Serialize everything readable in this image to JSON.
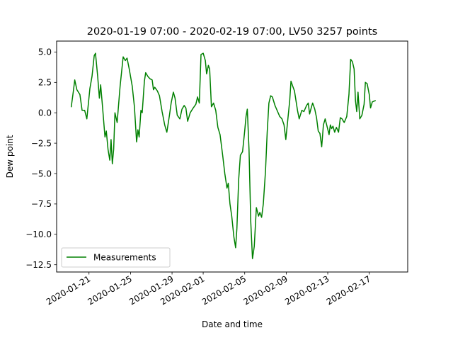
{
  "chart_data": {
    "type": "line",
    "title": "2020-01-19 07:00 - 2020-02-19 07:00, LV50 3257 points",
    "xlabel": "Date and time",
    "ylabel": "Dew point",
    "x_range": [
      "2020-01-19 07:00",
      "2020-02-19 07:00"
    ],
    "ylim": [
      -13.1,
      5.9
    ],
    "grid": false,
    "legend_position": "lower left",
    "x_ticks": [
      "2020-01-21",
      "2020-01-25",
      "2020-01-29",
      "2020-02-01",
      "2020-02-05",
      "2020-02-09",
      "2020-02-13",
      "2020-02-17"
    ],
    "y_ticks": [
      5.0,
      2.5,
      0.0,
      -2.5,
      -5.0,
      -7.5,
      -10.0,
      -12.5
    ],
    "y_tick_labels": [
      "5.0",
      "2.5",
      "0.0",
      "−2.5",
      "−5.0",
      "−7.5",
      "−10.0",
      "−12.5"
    ],
    "series": [
      {
        "name": "Measurements",
        "color": "#008000",
        "points": [
          [
            "2020-01-19 07:00",
            0.5
          ],
          [
            "2020-01-19 12:00",
            1.8
          ],
          [
            "2020-01-19 15:00",
            2.7
          ],
          [
            "2020-01-19 20:00",
            1.9
          ],
          [
            "2020-01-20 03:00",
            1.5
          ],
          [
            "2020-01-20 08:00",
            0.2
          ],
          [
            "2020-01-20 14:00",
            0.2
          ],
          [
            "2020-01-20 19:00",
            -0.5
          ],
          [
            "2020-01-21 02:00",
            2.0
          ],
          [
            "2020-01-21 07:00",
            3.0
          ],
          [
            "2020-01-21 12:00",
            4.7
          ],
          [
            "2020-01-21 15:00",
            4.9
          ],
          [
            "2020-01-21 20:00",
            3.0
          ],
          [
            "2020-01-22 00:00",
            1.2
          ],
          [
            "2020-01-22 03:00",
            2.3
          ],
          [
            "2020-01-22 07:00",
            0.6
          ],
          [
            "2020-01-22 10:00",
            -0.7
          ],
          [
            "2020-01-22 13:00",
            -2.0
          ],
          [
            "2020-01-22 16:00",
            -1.5
          ],
          [
            "2020-01-22 20:00",
            -3.0
          ],
          [
            "2020-01-23 00:00",
            -3.9
          ],
          [
            "2020-01-23 03:00",
            -2.2
          ],
          [
            "2020-01-23 06:00",
            -4.2
          ],
          [
            "2020-01-23 09:00",
            -3.0
          ],
          [
            "2020-01-23 12:00",
            0.0
          ],
          [
            "2020-01-23 17:00",
            -0.8
          ],
          [
            "2020-01-24 00:00",
            2.2
          ],
          [
            "2020-01-24 07:00",
            4.6
          ],
          [
            "2020-01-24 12:00",
            4.3
          ],
          [
            "2020-01-24 16:00",
            4.5
          ],
          [
            "2020-01-24 21:00",
            3.6
          ],
          [
            "2020-01-25 04:00",
            2.2
          ],
          [
            "2020-01-25 09:00",
            0.5
          ],
          [
            "2020-01-25 14:00",
            -2.4
          ],
          [
            "2020-01-25 17:00",
            -1.4
          ],
          [
            "2020-01-25 20:00",
            -2.0
          ],
          [
            "2020-01-26 00:00",
            0.2
          ],
          [
            "2020-01-26 03:00",
            0.0
          ],
          [
            "2020-01-26 08:00",
            2.6
          ],
          [
            "2020-01-26 11:00",
            3.3
          ],
          [
            "2020-01-26 16:00",
            3.0
          ],
          [
            "2020-01-26 21:00",
            2.8
          ],
          [
            "2020-01-27 02:00",
            2.7
          ],
          [
            "2020-01-27 05:00",
            1.9
          ],
          [
            "2020-01-27 08:00",
            2.1
          ],
          [
            "2020-01-27 14:00",
            1.8
          ],
          [
            "2020-01-27 19:00",
            1.4
          ],
          [
            "2020-01-28 01:00",
            0.1
          ],
          [
            "2020-01-28 07:00",
            -1.0
          ],
          [
            "2020-01-28 12:00",
            -1.6
          ],
          [
            "2020-01-28 18:00",
            -0.2
          ],
          [
            "2020-01-28 22:00",
            0.8
          ],
          [
            "2020-01-29 03:00",
            1.7
          ],
          [
            "2020-01-29 07:00",
            1.2
          ],
          [
            "2020-01-29 12:00",
            -0.2
          ],
          [
            "2020-01-29 18:00",
            -0.5
          ],
          [
            "2020-01-29 23:00",
            0.3
          ],
          [
            "2020-01-30 04:00",
            0.6
          ],
          [
            "2020-01-30 08:00",
            0.4
          ],
          [
            "2020-01-30 12:00",
            -0.7
          ],
          [
            "2020-01-30 18:00",
            0.0
          ],
          [
            "2020-01-31 01:00",
            0.4
          ],
          [
            "2020-01-31 07:00",
            0.7
          ],
          [
            "2020-01-31 11:00",
            1.3
          ],
          [
            "2020-01-31 15:00",
            0.8
          ],
          [
            "2020-01-31 19:00",
            4.8
          ],
          [
            "2020-02-01 00:00",
            4.9
          ],
          [
            "2020-02-01 05:00",
            4.3
          ],
          [
            "2020-02-01 08:00",
            3.2
          ],
          [
            "2020-02-01 12:00",
            3.9
          ],
          [
            "2020-02-01 15:00",
            3.6
          ],
          [
            "2020-02-01 19:00",
            0.5
          ],
          [
            "2020-02-02 00:00",
            0.8
          ],
          [
            "2020-02-02 05:00",
            0.2
          ],
          [
            "2020-02-02 10:00",
            -1.2
          ],
          [
            "2020-02-02 15:00",
            -1.8
          ],
          [
            "2020-02-02 21:00",
            -3.5
          ],
          [
            "2020-02-03 02:00",
            -5.0
          ],
          [
            "2020-02-03 07:00",
            -6.2
          ],
          [
            "2020-02-03 10:00",
            -5.8
          ],
          [
            "2020-02-03 14:00",
            -7.5
          ],
          [
            "2020-02-03 18:00",
            -8.5
          ],
          [
            "2020-02-03 23:00",
            -10.2
          ],
          [
            "2020-02-04 03:00",
            -11.1
          ],
          [
            "2020-02-04 06:00",
            -9.5
          ],
          [
            "2020-02-04 10:00",
            -5.5
          ],
          [
            "2020-02-04 14:00",
            -3.5
          ],
          [
            "2020-02-04 19:00",
            -3.2
          ],
          [
            "2020-02-05 00:00",
            -1.5
          ],
          [
            "2020-02-05 03:00",
            -0.3
          ],
          [
            "2020-02-05 06:00",
            0.3
          ],
          [
            "2020-02-05 10:00",
            -3.0
          ],
          [
            "2020-02-05 14:00",
            -9.0
          ],
          [
            "2020-02-05 18:00",
            -12.0
          ],
          [
            "2020-02-05 22:00",
            -11.0
          ],
          [
            "2020-02-06 03:00",
            -7.8
          ],
          [
            "2020-02-06 08:00",
            -8.5
          ],
          [
            "2020-02-06 11:00",
            -8.2
          ],
          [
            "2020-02-06 15:00",
            -8.6
          ],
          [
            "2020-02-06 19:00",
            -7.5
          ],
          [
            "2020-02-07 00:00",
            -4.8
          ],
          [
            "2020-02-07 04:00",
            -1.6
          ],
          [
            "2020-02-07 08:00",
            0.8
          ],
          [
            "2020-02-07 12:00",
            1.4
          ],
          [
            "2020-02-07 16:00",
            1.3
          ],
          [
            "2020-02-07 22:00",
            0.6
          ],
          [
            "2020-02-08 04:00",
            0.1
          ],
          [
            "2020-02-08 09:00",
            -0.3
          ],
          [
            "2020-02-08 14:00",
            -0.5
          ],
          [
            "2020-02-08 19:00",
            -1.0
          ],
          [
            "2020-02-08 23:00",
            -2.2
          ],
          [
            "2020-02-09 03:00",
            -0.8
          ],
          [
            "2020-02-09 08:00",
            1.0
          ],
          [
            "2020-02-09 11:00",
            2.6
          ],
          [
            "2020-02-09 15:00",
            2.2
          ],
          [
            "2020-02-09 19:00",
            1.8
          ],
          [
            "2020-02-10 02:00",
            0.2
          ],
          [
            "2020-02-10 06:00",
            -0.5
          ],
          [
            "2020-02-10 12:00",
            0.2
          ],
          [
            "2020-02-10 17:00",
            0.1
          ],
          [
            "2020-02-10 23:00",
            0.6
          ],
          [
            "2020-02-11 03:00",
            0.8
          ],
          [
            "2020-02-11 06:00",
            -0.1
          ],
          [
            "2020-02-11 09:00",
            0.3
          ],
          [
            "2020-02-11 13:00",
            0.8
          ],
          [
            "2020-02-11 18:00",
            0.3
          ],
          [
            "2020-02-11 22:00",
            -0.4
          ],
          [
            "2020-02-12 02:00",
            -1.5
          ],
          [
            "2020-02-12 06:00",
            -1.7
          ],
          [
            "2020-02-12 10:00",
            -2.8
          ],
          [
            "2020-02-12 14:00",
            -1.0
          ],
          [
            "2020-02-12 18:00",
            -0.5
          ],
          [
            "2020-02-12 23:00",
            -1.2
          ],
          [
            "2020-02-13 03:00",
            -1.8
          ],
          [
            "2020-02-13 06:00",
            -1.0
          ],
          [
            "2020-02-13 09:00",
            -1.3
          ],
          [
            "2020-02-13 12:00",
            -1.1
          ],
          [
            "2020-02-13 16:00",
            -1.6
          ],
          [
            "2020-02-13 20:00",
            -1.2
          ],
          [
            "2020-02-14 01:00",
            -1.6
          ],
          [
            "2020-02-14 05:00",
            -0.4
          ],
          [
            "2020-02-14 09:00",
            -0.5
          ],
          [
            "2020-02-14 14:00",
            -0.8
          ],
          [
            "2020-02-14 20:00",
            -0.3
          ],
          [
            "2020-02-15 01:00",
            1.5
          ],
          [
            "2020-02-15 05:00",
            4.4
          ],
          [
            "2020-02-15 09:00",
            4.2
          ],
          [
            "2020-02-15 13:00",
            3.6
          ],
          [
            "2020-02-15 16:00",
            1.0
          ],
          [
            "2020-02-15 19:00",
            0.1
          ],
          [
            "2020-02-15 22:00",
            1.7
          ],
          [
            "2020-02-16 02:00",
            -0.5
          ],
          [
            "2020-02-16 07:00",
            -0.2
          ],
          [
            "2020-02-16 12:00",
            0.7
          ],
          [
            "2020-02-16 15:00",
            2.5
          ],
          [
            "2020-02-16 19:00",
            2.4
          ],
          [
            "2020-02-17 00:00",
            1.5
          ],
          [
            "2020-02-17 03:00",
            0.4
          ],
          [
            "2020-02-17 07:00",
            0.9
          ],
          [
            "2020-02-17 14:00",
            1.0
          ]
        ]
      }
    ]
  }
}
